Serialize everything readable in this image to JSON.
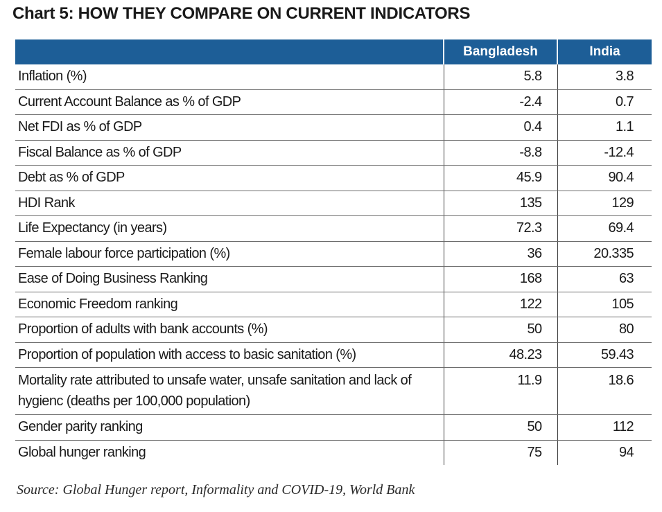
{
  "title": "Chart 5: HOW THEY COMPARE ON CURRENT INDICATORS",
  "table": {
    "headers": [
      "",
      "Bangladesh",
      "India"
    ],
    "rows": [
      {
        "indicator": "Inflation (%)",
        "bangladesh": "5.8",
        "india": "3.8"
      },
      {
        "indicator": "Current Account Balance as % of GDP",
        "bangladesh": "-2.4",
        "india": "0.7"
      },
      {
        "indicator": "Net FDI as % of GDP",
        "bangladesh": "0.4",
        "india": "1.1"
      },
      {
        "indicator": "Fiscal Balance as % of GDP",
        "bangladesh": "-8.8",
        "india": "-12.4"
      },
      {
        "indicator": "Debt as % of GDP",
        "bangladesh": "45.9",
        "india": "90.4"
      },
      {
        "indicator": "HDI Rank",
        "bangladesh": "135",
        "india": "129"
      },
      {
        "indicator": "Life Expectancy (in years)",
        "bangladesh": "72.3",
        "india": "69.4"
      },
      {
        "indicator": "Female labour force participation (%)",
        "bangladesh": "36",
        "india": "20.335"
      },
      {
        "indicator": "Ease of Doing Business Ranking",
        "bangladesh": "168",
        "india": "63"
      },
      {
        "indicator": "Economic Freedom ranking",
        "bangladesh": "122",
        "india": "105"
      },
      {
        "indicator": "Proportion of adults with bank accounts (%)",
        "bangladesh": "50",
        "india": "80"
      },
      {
        "indicator": "Proportion of population with access to basic sanitation (%)",
        "bangladesh": "48.23",
        "india": "59.43"
      },
      {
        "indicator": "Mortality rate attributed to unsafe water, unsafe sanitation and lack of hygienc (deaths per 100,000 population)",
        "bangladesh": "11.9",
        "india": "18.6"
      },
      {
        "indicator": "Gender parity ranking",
        "bangladesh": "50",
        "india": "112"
      },
      {
        "indicator": "Global hunger ranking",
        "bangladesh": "75",
        "india": "94"
      }
    ]
  },
  "source": "Source: Global Hunger report, Informality and COVID-19, World Bank",
  "colors": {
    "header_background": "#1d5e97",
    "header_text": "#ffffff",
    "body_text": "#1a1a1a"
  }
}
